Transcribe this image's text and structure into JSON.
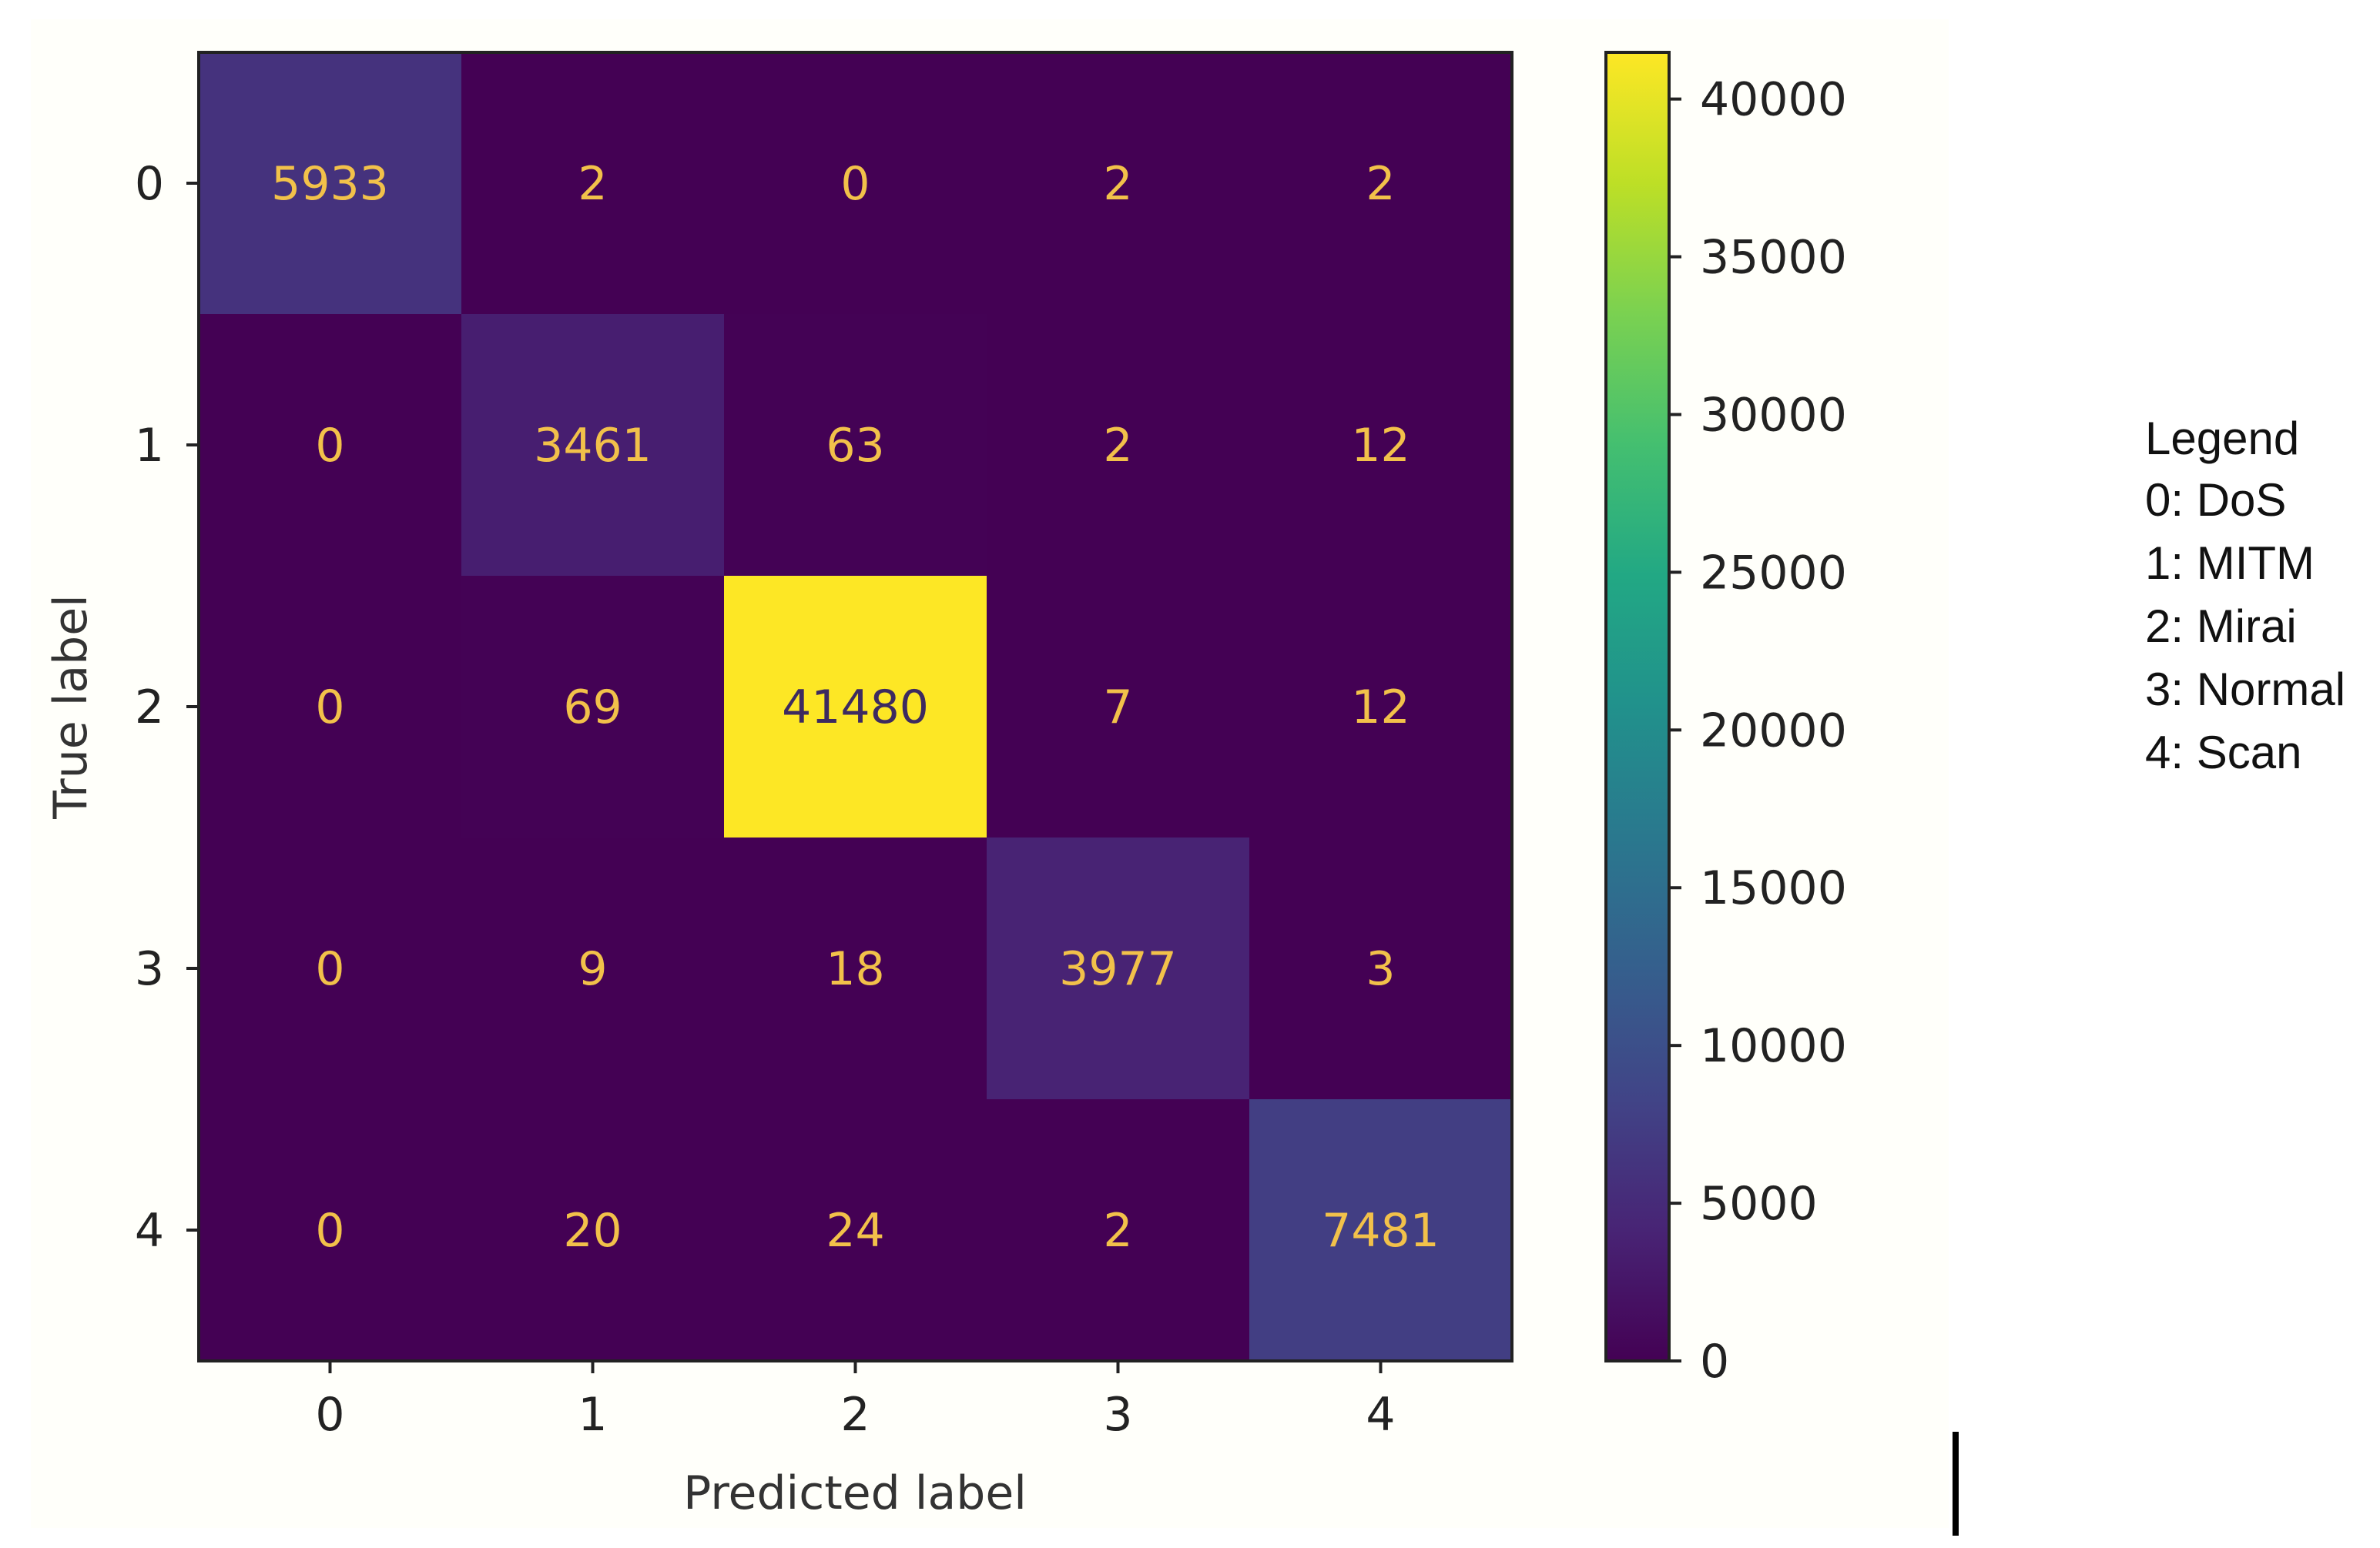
{
  "chart_data": {
    "type": "heatmap",
    "title": "",
    "xlabel": "Predicted label",
    "ylabel": "True label",
    "x_categories": [
      "0",
      "1",
      "2",
      "3",
      "4"
    ],
    "y_categories": [
      "0",
      "1",
      "2",
      "3",
      "4"
    ],
    "matrix": [
      [
        5933,
        2,
        0,
        2,
        2
      ],
      [
        0,
        3461,
        63,
        2,
        12
      ],
      [
        0,
        69,
        41480,
        7,
        12
      ],
      [
        0,
        9,
        18,
        3977,
        3
      ],
      [
        0,
        20,
        24,
        2,
        7481
      ]
    ],
    "colormap": "viridis",
    "colorbar": {
      "min": 0,
      "max": 41480,
      "ticks": [
        0,
        5000,
        10000,
        15000,
        20000,
        25000,
        30000,
        35000,
        40000
      ]
    },
    "legend": {
      "title": "Legend",
      "items": [
        "0: DoS",
        "1: MITM",
        "2: Mirai",
        "3: Normal",
        "4: Scan"
      ],
      "placement": "right"
    },
    "text_colors": {
      "on_dark": "#f2c14a",
      "on_light": "#3d2a60"
    },
    "grid": false
  }
}
